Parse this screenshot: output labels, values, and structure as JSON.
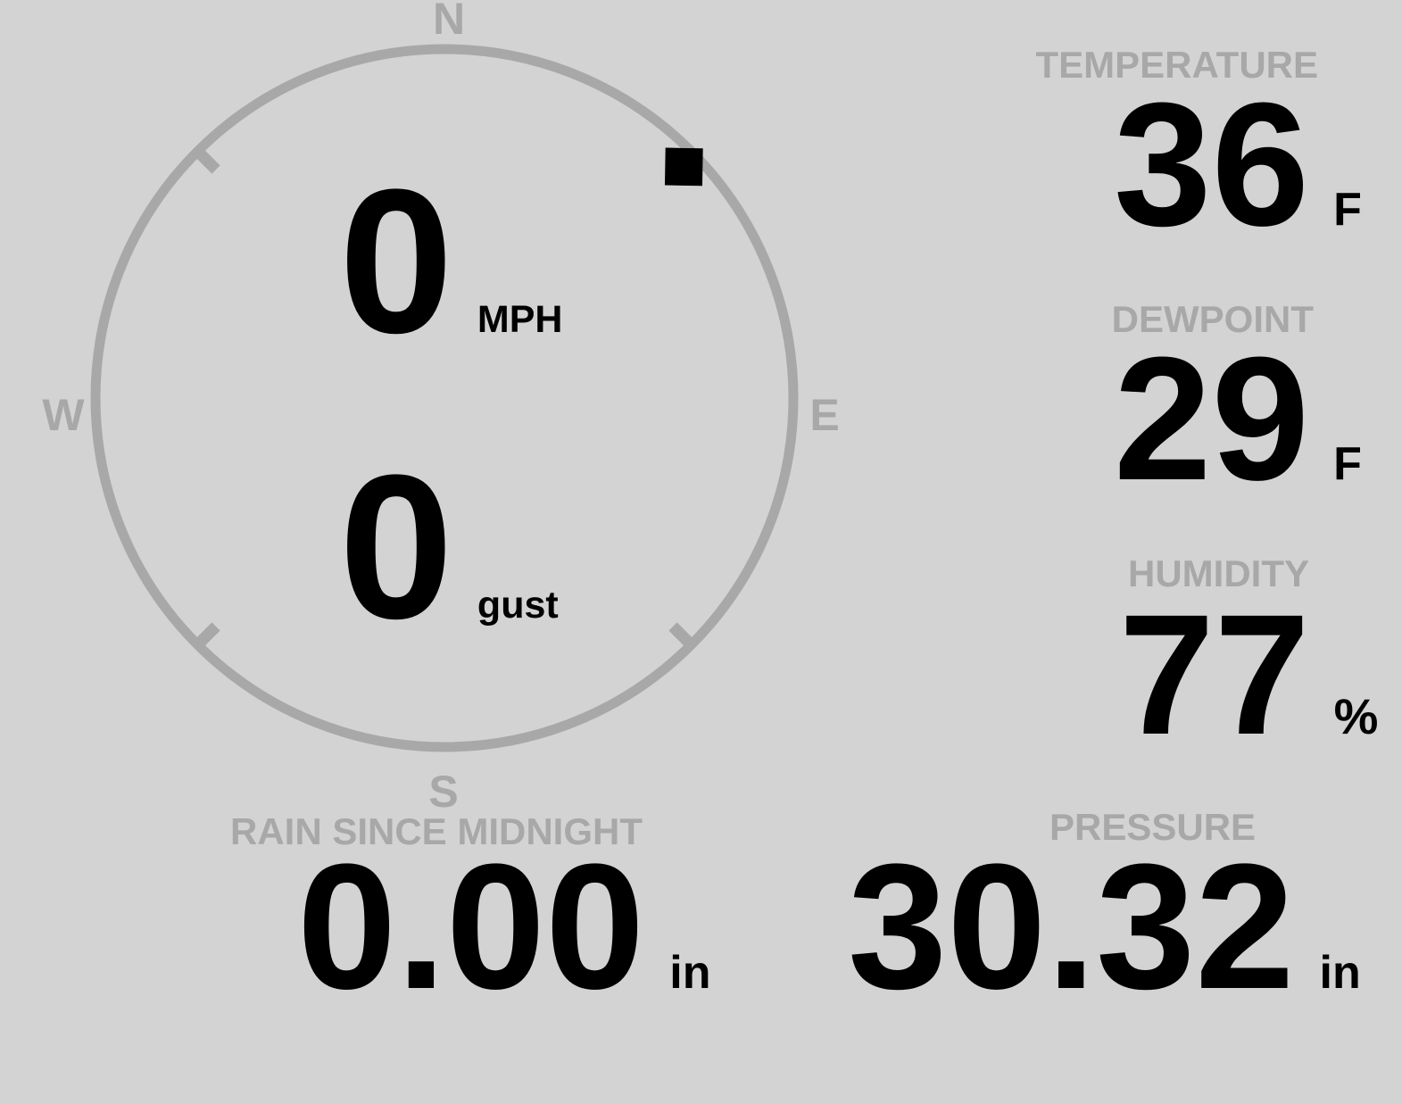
{
  "theme": {
    "background": "#d3d3d3",
    "muted_gray": "#a8a8a8",
    "value_black": "#000000"
  },
  "wind": {
    "compass": {
      "north": "N",
      "east": "E",
      "south": "S",
      "west": "W"
    },
    "direction_deg": 46,
    "speed": {
      "value": "0",
      "unit": "MPH"
    },
    "gust": {
      "value": "0",
      "unit": "gust"
    }
  },
  "stats": {
    "temperature": {
      "label": "TEMPERATURE",
      "value": "36",
      "unit": "F"
    },
    "dewpoint": {
      "label": "DEWPOINT",
      "value": "29",
      "unit": "F"
    },
    "humidity": {
      "label": "HUMIDITY",
      "value": "77",
      "unit": "%"
    },
    "rain": {
      "label": "RAIN SINCE MIDNIGHT",
      "value": "0.00",
      "unit": "in"
    },
    "pressure": {
      "label": "PRESSURE",
      "value": "30.32",
      "unit": "in"
    }
  }
}
